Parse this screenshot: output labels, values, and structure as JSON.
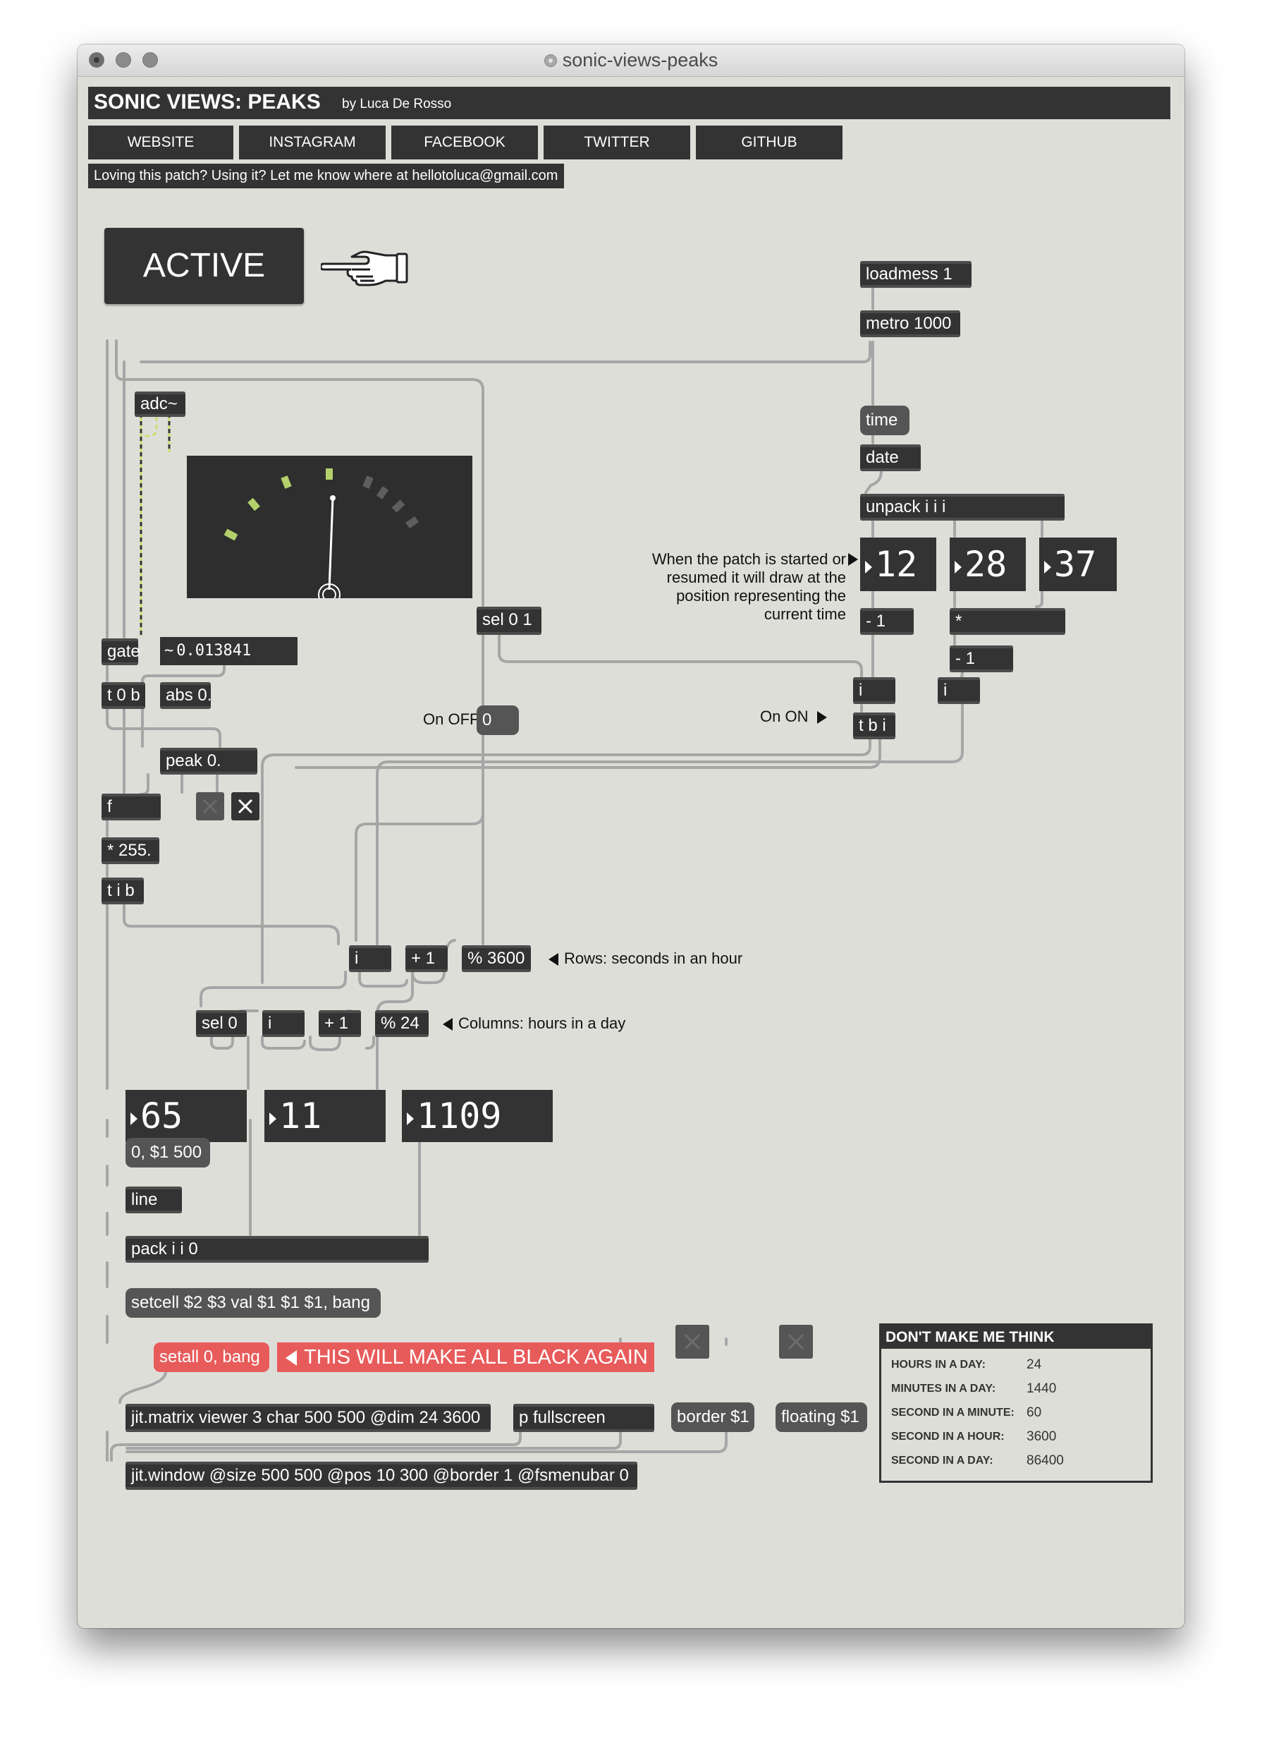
{
  "window": {
    "title": "sonic-views-peaks"
  },
  "header": {
    "title": "SONIC VIEWS: PEAKS",
    "byline": "by Luca De Rosso",
    "links": [
      "WEBSITE",
      "INSTAGRAM",
      "FACEBOOK",
      "TWITTER",
      "GITHUB"
    ],
    "message": "Loving this patch? Using it? Let me know where at hellotoluca@gmail.com"
  },
  "active_button": {
    "label": "ACTIVE"
  },
  "objects": {
    "loadmess": "loadmess 1",
    "metro": "metro 1000",
    "time": "time",
    "date": "date",
    "unpack": "unpack i i i",
    "adc": "adc~",
    "gate": "gate",
    "sel01": "sel 0 1",
    "t0b": "t 0 b",
    "abs": "abs 0.",
    "peak": "peak 0.",
    "f": "f",
    "mul255": "* 255.",
    "tib": "t i b",
    "minus1a": "- 1",
    "mult": "*",
    "minus1b": "- 1",
    "i_on": "i",
    "i_right": "i",
    "tbi": "t b i",
    "i_rows": "i",
    "plus1_rows": "+ 1",
    "mod3600": "% 3600",
    "sel0": "sel 0",
    "i_cols": "i",
    "plus1_cols": "+ 1",
    "mod24": "% 24",
    "line": "line",
    "pack": "pack i i 0",
    "matrix": "jit.matrix viewer 3 char 500 500 @dim 24 3600",
    "fullscreen": "p fullscreen",
    "jitwindow": "jit.window @size 500 500 @pos 10 300 @border 1 @fsmenubar 0"
  },
  "messages": {
    "ramp": "0, $1 500",
    "setcell": "setcell $2 $3 val $1 $1 $1, bang",
    "setall": "setall 0, bang",
    "border": "border $1",
    "floating": "floating $1"
  },
  "numbers": {
    "level": "0.013841",
    "hours": "12",
    "minutes": "28",
    "seconds": "37",
    "off_value": "0",
    "value": "65",
    "column": "11",
    "row": "1109"
  },
  "comments": {
    "startup": "When the patch is started or resumed it will draw at the position representing the current time",
    "on_off": "On OFF",
    "on_on": "On ON",
    "rows": "Rows: seconds in an hour",
    "columns": "Columns: hours in a day",
    "black_again": "THIS WILL MAKE ALL BLACK AGAIN"
  },
  "info_panel": {
    "title": "DON'T MAKE ME THINK",
    "rows": [
      {
        "label": "HOURS IN A DAY:",
        "value": "24"
      },
      {
        "label": "MINUTES IN A DAY:",
        "value": "1440"
      },
      {
        "label": "SECOND IN A MINUTE:",
        "value": "60"
      },
      {
        "label": "SECOND IN A HOUR:",
        "value": "3600"
      },
      {
        "label": "SECOND IN A DAY:",
        "value": "86400"
      }
    ]
  },
  "colors": {
    "canvas": "#deded9",
    "object": "#333333",
    "message": "#555555",
    "alert": "#e85b5b",
    "meter_led": "#b3d06a",
    "patch_cord": "#a6a6a6",
    "signal_cord": "#c7df6f"
  },
  "icons": [
    "pointing-hand-icon",
    "toggle-x-icon"
  ]
}
